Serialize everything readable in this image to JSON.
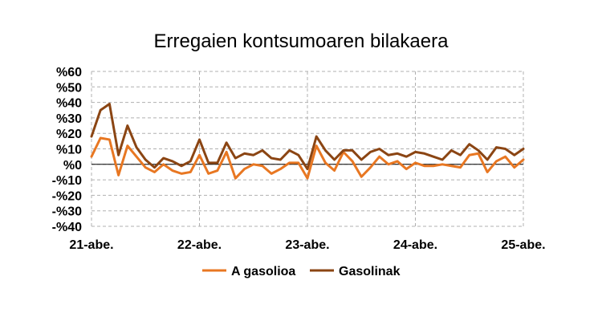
{
  "chart_data": {
    "type": "line",
    "title": "Erregaien kontsumoaren bilakaera",
    "xlabel": "",
    "ylabel": "",
    "ylim": [
      -40,
      60
    ],
    "yticks": [
      60,
      50,
      40,
      30,
      20,
      10,
      0,
      -10,
      -20,
      -30,
      -40
    ],
    "ytick_labels": [
      "%60",
      "%50",
      "%40",
      "%30",
      "%20",
      "%10",
      "%0",
      "-%10",
      "-%20",
      "-%30",
      "-%40"
    ],
    "xtick_labels": [
      "21-abe.",
      "22-abe.",
      "23-abe.",
      "24-abe.",
      "25-abe."
    ],
    "xtick_positions": [
      0,
      12,
      24,
      36,
      48
    ],
    "grid": true,
    "legend_position": "bottom",
    "colors": {
      "A gasolioa": "#e87722",
      "Gasolinak": "#8b4513"
    },
    "x": [
      0,
      1,
      2,
      3,
      4,
      5,
      6,
      7,
      8,
      9,
      10,
      11,
      12,
      13,
      14,
      15,
      16,
      17,
      18,
      19,
      20,
      21,
      22,
      23,
      24,
      25,
      26,
      27,
      28,
      29,
      30,
      31,
      32,
      33,
      34,
      35,
      36,
      37,
      38,
      39,
      40,
      41,
      42,
      43,
      44,
      45,
      46,
      47,
      48
    ],
    "series": [
      {
        "name": "A gasolioa",
        "values": [
          5,
          17,
          16,
          -7,
          12,
          5,
          -2,
          -5,
          0,
          -4,
          -6,
          -5,
          6,
          -6,
          -4,
          8,
          -9,
          -3,
          0,
          -1,
          -6,
          -3,
          1,
          1,
          -9,
          12,
          1,
          -4,
          8,
          2,
          -8,
          -2,
          5,
          0,
          2,
          -3,
          1,
          -1,
          -1,
          0,
          -1,
          -2,
          6,
          7,
          -5,
          2,
          5,
          -2,
          3
        ]
      },
      {
        "name": "Gasolinak",
        "values": [
          18,
          35,
          39,
          6,
          25,
          11,
          3,
          -2,
          4,
          2,
          -1,
          2,
          16,
          1,
          1,
          14,
          4,
          7,
          6,
          9,
          4,
          3,
          9,
          6,
          -3,
          18,
          9,
          3,
          9,
          9,
          3,
          8,
          10,
          6,
          7,
          5,
          8,
          7,
          5,
          3,
          9,
          6,
          13,
          9,
          3,
          11,
          10,
          6,
          10
        ]
      }
    ]
  }
}
